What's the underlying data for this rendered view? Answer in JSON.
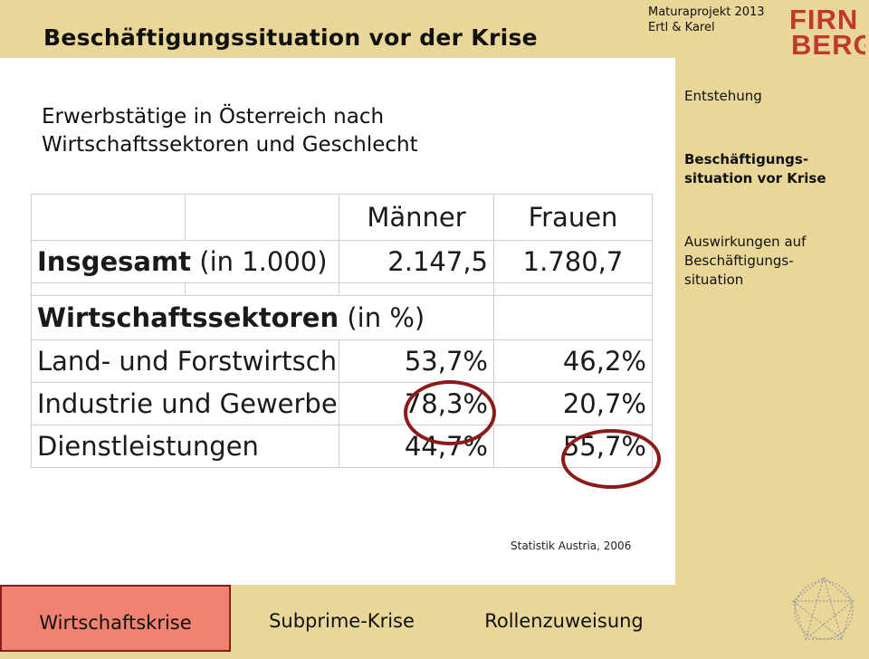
{
  "header": {
    "title": "Beschäftigungssituation vor der Krise",
    "credit_line1": "Maturaprojekt 2013",
    "credit_line2": "Ertl & Karel",
    "logo_text_top": "FIRN",
    "logo_text_bottom": "BERG",
    "logo_color": "#c0392b"
  },
  "main": {
    "subtitle_line1": "Erwerbstätige in Österreich nach",
    "subtitle_line2": "Wirtschaftssektoren und Geschlecht",
    "table": {
      "columns": [
        "Männer",
        "Frauen"
      ],
      "total_label": "Insgesamt",
      "total_unit": " (in 1.000)",
      "total_values": [
        "2.147,5",
        "1.780,7"
      ],
      "section_label": "Wirtschaftssektoren",
      "section_unit": " (in %)",
      "rows": [
        {
          "label": "Land- und Forstwirtschaft",
          "values": [
            "53,7%",
            "46,2%"
          ]
        },
        {
          "label": "Industrie und Gewerbe",
          "values": [
            "78,3%",
            "20,7%"
          ]
        },
        {
          "label": "Dienstleistungen",
          "values": [
            "44,7%",
            "55,7%"
          ]
        }
      ]
    },
    "source": "Statistik Austria, 2006",
    "highlight_color": "#8b1a1a"
  },
  "sidebar": {
    "items": [
      {
        "label": "Entstehung",
        "active": false
      },
      {
        "label": "Beschäftigungs-\nsituation vor Krise",
        "active": true
      },
      {
        "label": "Auswirkungen auf\nBeschäftigungs-\nsituation",
        "active": false
      }
    ]
  },
  "bottom_nav": {
    "tabs": [
      {
        "label": "Wirtschaftskrise",
        "active": true
      },
      {
        "label": "Subprime-Krise",
        "active": false
      },
      {
        "label": "Rollenzuweisung",
        "active": false
      }
    ],
    "active_color": "#f08272"
  },
  "colors": {
    "background": "#e9d79a",
    "panel": "#ffffff"
  }
}
